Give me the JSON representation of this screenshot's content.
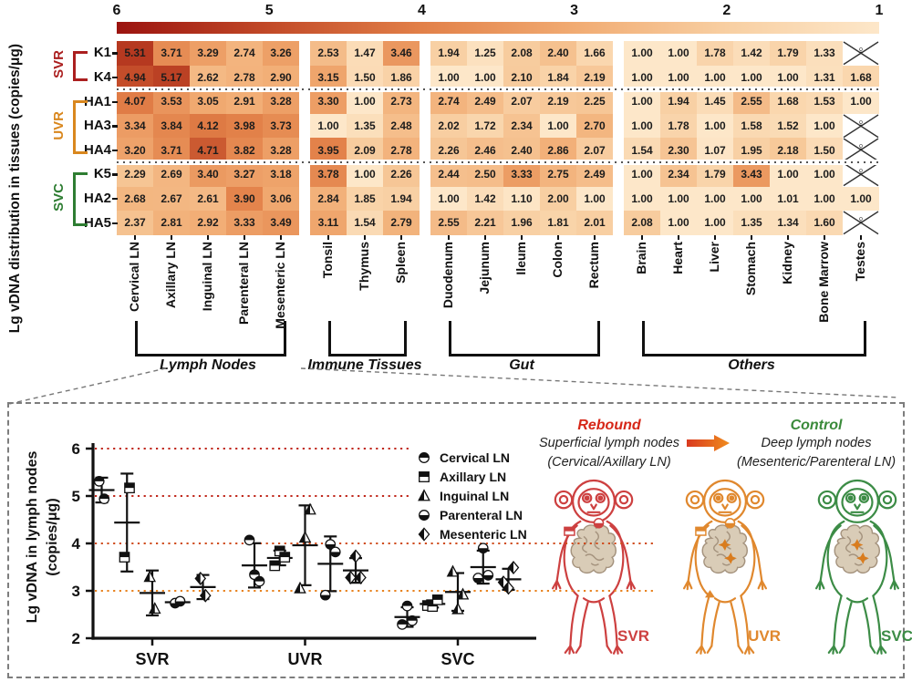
{
  "figure": {
    "heatmap_axis_label": "Lg vDNA distribution in tissues (copies/μg)",
    "scatter_axis_label_line1": "Lg vDNA in lymph nodes",
    "scatter_axis_label_line2": "(copies/μg)"
  },
  "colors": {
    "colormap": [
      "#fde7c9",
      "#f8cfa2",
      "#f1ab72",
      "#e28048",
      "#c24a28",
      "#9b130f"
    ],
    "svr": "#ab1f1f",
    "uvr": "#d9871e",
    "svc": "#2e7d32",
    "arrow_start": "#d93a1f",
    "arrow_end": "#f08c1e",
    "intestine_fill": "#d9ccb7",
    "intestine_stroke": "#a5937e",
    "gut_marker": "#d97c1e"
  },
  "chart_data": [
    {
      "type": "heatmap",
      "title": "Lg vDNA distribution in tissues (copies/μg)",
      "value_range": [
        1,
        6
      ],
      "colorbar_ticks": [
        "6",
        "5",
        "4",
        "3",
        "2",
        "1"
      ],
      "columns": [
        "Cervical LN",
        "Axillary LN",
        "Inguinal LN",
        "Parenteral LN",
        "Mesenteric LN",
        "Tonsil",
        "Thymus",
        "Spleen",
        "Duodenum",
        "Jejunum",
        "Ileum",
        "Colon",
        "Rectum",
        "Brain",
        "Heart",
        "Liver",
        "Stomach",
        "Kidney",
        "Bone Marrow",
        "Testes"
      ],
      "column_groups": [
        {
          "label": "Lymph Nodes",
          "span": 5
        },
        {
          "label": "Immune Tissues",
          "span": 3
        },
        {
          "label": "Gut",
          "span": 5
        },
        {
          "label": "Others",
          "span": 7
        }
      ],
      "row_groups": [
        {
          "label": "SVR",
          "color_key": "svr",
          "count": 2
        },
        {
          "label": "UVR",
          "color_key": "uvr",
          "count": 3
        },
        {
          "label": "SVC",
          "color_key": "svc",
          "count": 3
        }
      ],
      "rows": [
        {
          "label": "K1",
          "values": [
            5.31,
            3.71,
            3.29,
            2.74,
            3.26,
            2.53,
            1.47,
            3.46,
            1.94,
            1.25,
            2.08,
            2.4,
            1.66,
            1.0,
            1.0,
            1.78,
            1.42,
            1.79,
            1.33,
            null
          ]
        },
        {
          "label": "K4",
          "values": [
            4.94,
            5.17,
            2.62,
            2.78,
            2.9,
            3.15,
            1.5,
            1.86,
            1.0,
            1.0,
            2.1,
            1.84,
            2.19,
            1.0,
            1.0,
            1.0,
            1.0,
            1.0,
            1.31,
            1.68
          ]
        },
        {
          "label": "HA1",
          "values": [
            4.07,
            3.53,
            3.05,
            2.91,
            3.28,
            3.3,
            1.0,
            2.73,
            2.74,
            2.49,
            2.07,
            2.19,
            2.25,
            1.0,
            1.94,
            1.45,
            2.55,
            1.68,
            1.53,
            1.0
          ]
        },
        {
          "label": "HA3",
          "values": [
            3.34,
            3.84,
            4.12,
            3.98,
            3.73,
            1.0,
            1.35,
            2.48,
            2.02,
            1.72,
            2.34,
            1.0,
            2.7,
            1.0,
            1.78,
            1.0,
            1.58,
            1.52,
            1.0,
            null
          ]
        },
        {
          "label": "HA4",
          "values": [
            3.2,
            3.71,
            4.71,
            3.82,
            3.28,
            3.95,
            2.09,
            2.78,
            2.26,
            2.46,
            2.4,
            2.86,
            2.07,
            1.54,
            2.3,
            1.07,
            1.95,
            2.18,
            1.5,
            null
          ]
        },
        {
          "label": "K5",
          "values": [
            2.29,
            2.69,
            3.4,
            3.27,
            3.18,
            3.78,
            1.0,
            2.26,
            2.44,
            2.5,
            3.33,
            2.75,
            2.49,
            1.0,
            2.34,
            1.79,
            3.43,
            1.0,
            1.0,
            null
          ]
        },
        {
          "label": "HA2",
          "values": [
            2.68,
            2.67,
            2.61,
            3.9,
            3.06,
            2.84,
            1.85,
            1.94,
            1.0,
            1.42,
            1.1,
            2.0,
            1.0,
            1.0,
            1.0,
            1.0,
            1.0,
            1.01,
            1.0,
            1.0
          ]
        },
        {
          "label": "HA5",
          "values": [
            2.37,
            2.81,
            2.92,
            3.33,
            3.49,
            3.11,
            1.54,
            2.79,
            2.55,
            2.21,
            1.96,
            1.81,
            2.01,
            2.08,
            1.0,
            1.0,
            1.35,
            1.34,
            1.6,
            null
          ]
        }
      ],
      "null_cell": "crossed-female-symbol"
    },
    {
      "type": "scatter",
      "ylabel": "Lg vDNA in lymph nodes (copies/μg)",
      "ylim": [
        2,
        6
      ],
      "yticks": [
        2,
        3,
        4,
        5,
        6
      ],
      "gridlines": [
        {
          "y": 6,
          "color": "#c0271b",
          "extent": "short"
        },
        {
          "y": 5,
          "color": "#c0271b",
          "extent": "short"
        },
        {
          "y": 4,
          "color": "#cf4c1d",
          "extent": "long"
        },
        {
          "y": 3,
          "color": "#e8821e",
          "extent": "long"
        }
      ],
      "groups": [
        "SVR",
        "UVR",
        "SVC"
      ],
      "error_bars": "mean_sd",
      "series": [
        {
          "name": "Cervical LN",
          "marker": "half-circle-top",
          "SVR": [
            5.31,
            4.94
          ],
          "UVR": [
            4.07,
            3.34,
            3.2
          ],
          "SVC": [
            2.29,
            2.68,
            2.37
          ]
        },
        {
          "name": "Axillary LN",
          "marker": "half-square-top",
          "SVR": [
            3.71,
            5.17
          ],
          "UVR": [
            3.53,
            3.84,
            3.71
          ],
          "SVC": [
            2.69,
            2.67,
            2.81
          ]
        },
        {
          "name": "Inguinal LN",
          "marker": "half-triangle-left",
          "SVR": [
            3.29,
            2.62
          ],
          "UVR": [
            3.05,
            4.12,
            4.71
          ],
          "SVC": [
            3.4,
            2.61,
            2.92
          ]
        },
        {
          "name": "Parenteral LN",
          "marker": "half-circle-bottom",
          "SVR": [
            2.74,
            2.78
          ],
          "UVR": [
            2.91,
            3.98,
            3.82
          ],
          "SVC": [
            3.27,
            3.9,
            3.33
          ]
        },
        {
          "name": "Mesenteric LN",
          "marker": "half-diamond-left",
          "SVR": [
            3.26,
            2.9
          ],
          "UVR": [
            3.28,
            3.73,
            3.28
          ],
          "SVC": [
            3.18,
            3.06,
            3.49
          ]
        }
      ]
    }
  ],
  "annotation": {
    "rebound_title": "Rebound",
    "rebound_line1": "Superficial lymph nodes",
    "rebound_line2": "(Cervical/Axillary LN)",
    "control_title": "Control",
    "control_line1": "Deep lymph nodes",
    "control_line2": "(Mesenteric/Parenteral LN)",
    "monkeys": [
      {
        "label": "SVR",
        "color": "#cd4040",
        "markers": [
          "neck",
          "armpit"
        ]
      },
      {
        "label": "UVR",
        "color": "#e0882e",
        "markers": [
          "neck",
          "armpit",
          "gut",
          "groin"
        ]
      },
      {
        "label": "SVC",
        "color": "#3c8c46",
        "markers": [
          "gut"
        ]
      }
    ]
  }
}
